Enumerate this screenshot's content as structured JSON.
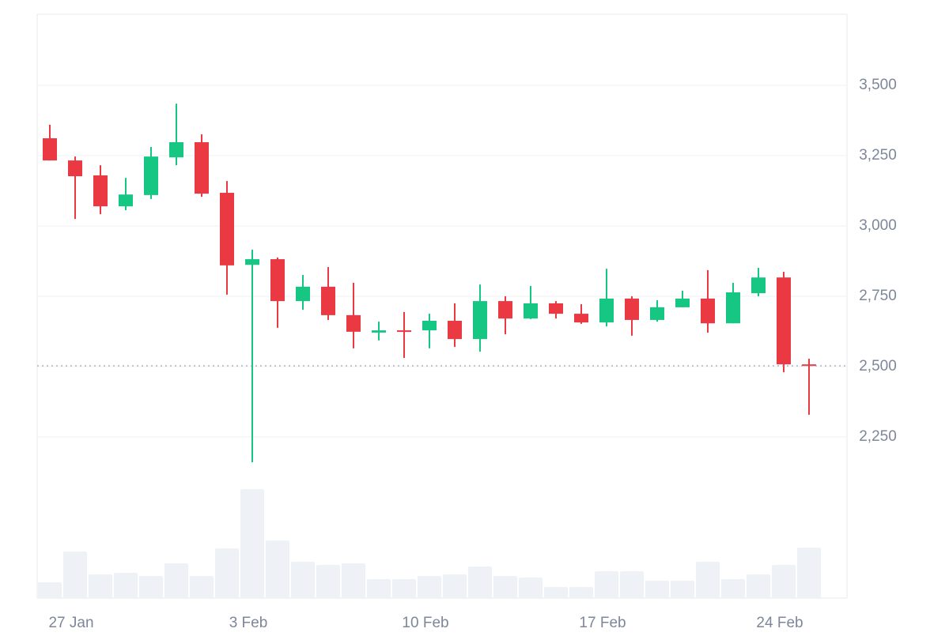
{
  "chart_data": {
    "type": "candlestick",
    "categories": [
      null,
      "27 Jan",
      null,
      null,
      null,
      null,
      null,
      null,
      "3 Feb",
      null,
      null,
      null,
      null,
      null,
      null,
      "10 Feb",
      null,
      null,
      null,
      null,
      null,
      null,
      "17 Feb",
      null,
      null,
      null,
      null,
      null,
      null,
      "24 Feb",
      null
    ],
    "open": [
      3312,
      3233,
      3180,
      3070,
      3110,
      3244,
      3298,
      3118,
      2862,
      2882,
      2733,
      2784,
      2683,
      2621,
      2629,
      2629,
      2663,
      2598,
      2733,
      2671,
      2725,
      2688,
      2657,
      2742,
      2666,
      2711,
      2742,
      2654,
      2761,
      2817,
      2508
    ],
    "high": [
      3360,
      3247,
      3216,
      3171,
      3281,
      3435,
      3326,
      3160,
      2916,
      2888,
      2826,
      2854,
      2798,
      2660,
      2694,
      2688,
      2725,
      2792,
      2750,
      2787,
      2733,
      2722,
      2848,
      2750,
      2736,
      2770,
      2843,
      2798,
      2851,
      2837,
      2528
    ],
    "low": [
      3233,
      3025,
      3042,
      3056,
      3096,
      3216,
      3104,
      2756,
      2160,
      2638,
      2702,
      2666,
      2565,
      2593,
      2531,
      2565,
      2570,
      2553,
      2615,
      2669,
      2671,
      2652,
      2643,
      2610,
      2660,
      2711,
      2621,
      2654,
      2750,
      2480,
      2329
    ],
    "close": [
      3233,
      3177,
      3070,
      3112,
      3247,
      3298,
      3115,
      2860,
      2882,
      2733,
      2784,
      2683,
      2624,
      2629,
      2626,
      2663,
      2598,
      2733,
      2671,
      2725,
      2688,
      2657,
      2742,
      2666,
      2711,
      2742,
      2654,
      2764,
      2817,
      2508,
      2503
    ],
    "volume": [
      20,
      59,
      30,
      32,
      28,
      44,
      28,
      63,
      138,
      73,
      46,
      42,
      44,
      24,
      24,
      28,
      30,
      40,
      28,
      26,
      14,
      14,
      34,
      34,
      22,
      22,
      46,
      24,
      30,
      42,
      64
    ],
    "up_color": "#16c784",
    "down_color": "#ea3943",
    "volume_color": "#eef2f6",
    "ylim": [
      1677,
      3753
    ],
    "volume_lim": [
      0,
      740
    ],
    "yticks": [
      {
        "value": 2250,
        "label": "2,250"
      },
      {
        "value": 2500,
        "label": "2,500"
      },
      {
        "value": 2750,
        "label": "2,750"
      },
      {
        "value": 3000,
        "label": "3,000"
      },
      {
        "value": 3250,
        "label": "3,250"
      },
      {
        "value": 3500,
        "label": "3,500"
      }
    ],
    "grid": true,
    "last_price_line": true
  }
}
